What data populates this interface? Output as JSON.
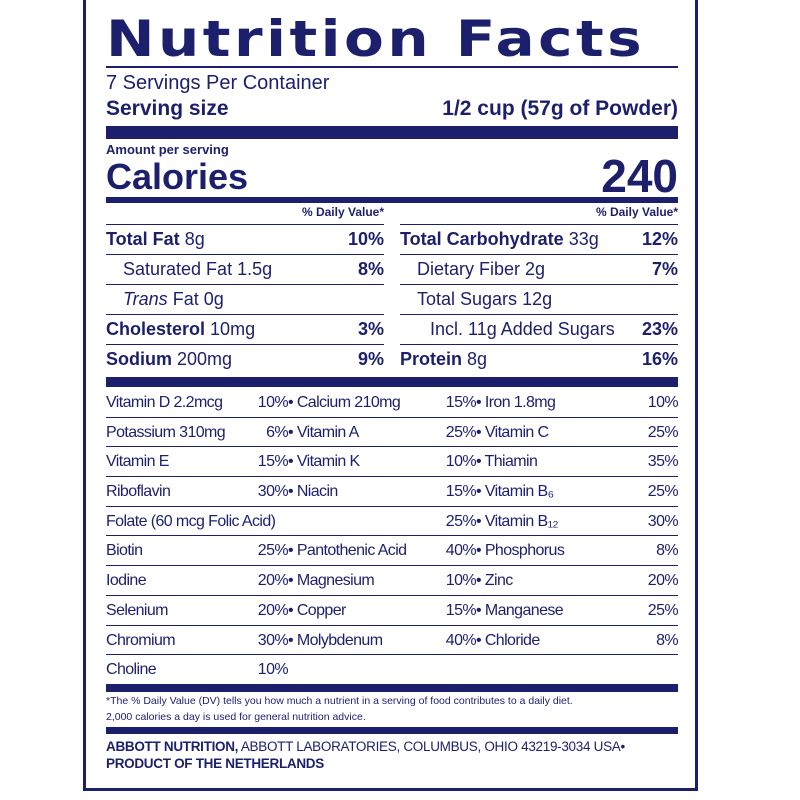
{
  "title": "Nutrition Facts",
  "servings_per_container": "7 Servings Per Container",
  "serving_size_label": "Serving size",
  "serving_size_value": "1/2 cup (57g of Powder)",
  "amount_per_serving": "Amount per serving",
  "calories_label": "Calories",
  "calories_value": "240",
  "dv_header": "% Daily Value*",
  "left_rows": [
    {
      "name": "Total Fat",
      "amount": "8g",
      "dv": "10%",
      "bold": true
    },
    {
      "name": "Saturated Fat",
      "amount": "1.5g",
      "dv": "8%",
      "indent": true
    },
    {
      "name": "Trans",
      "amount": "Fat 0g",
      "dv": "",
      "indent": true,
      "italic": true
    },
    {
      "name": "Cholesterol",
      "amount": "10mg",
      "dv": "3%",
      "bold": true
    },
    {
      "name": "Sodium",
      "amount": "200mg",
      "dv": "9%",
      "bold": true
    }
  ],
  "right_rows": [
    {
      "name": "Total Carbohydrate",
      "amount": "33g",
      "dv": "12%",
      "bold": true
    },
    {
      "name": "Dietary Fiber",
      "amount": "2g",
      "dv": "7%",
      "indent": true
    },
    {
      "name": "Total Sugars",
      "amount": "12g",
      "dv": "",
      "indent": true
    },
    {
      "name": "Incl. 11g Added Sugars",
      "amount": "",
      "dv": "23%",
      "indent2": true
    },
    {
      "name": "Protein",
      "amount": "8g",
      "dv": "16%",
      "bold": true
    }
  ],
  "micronutrients": [
    [
      "Vitamin D 2.2mcg",
      "10%",
      "• Calcium 210mg",
      "15%",
      "• Iron 1.8mg",
      "10%"
    ],
    [
      "Potassium 310mg",
      "6%",
      "• Vitamin A",
      "25%",
      "• Vitamin C",
      "25%"
    ],
    [
      "Vitamin E",
      "15%",
      "• Vitamin K",
      "10%",
      "• Thiamin",
      "35%"
    ],
    [
      "Riboflavin",
      "30%",
      "• Niacin",
      "15%",
      "• Vitamin B₆",
      "25%"
    ],
    [
      "Folate (60 mcg Folic Acid)",
      "",
      "",
      "25%",
      "• Vitamin B₁₂",
      "30%"
    ],
    [
      "Biotin",
      "25%",
      "• Pantothenic Acid",
      "40%",
      "• Phosphorus",
      "8%"
    ],
    [
      "Iodine",
      "20%",
      "• Magnesium",
      "10%",
      "• Zinc",
      "20%"
    ],
    [
      "Selenium",
      "20%",
      "• Copper",
      "15%",
      "• Manganese",
      "25%"
    ],
    [
      "Chromium",
      "30%",
      "• Molybdenum",
      "40%",
      "• Chloride",
      "8%"
    ],
    [
      "Choline",
      "10%",
      "",
      "",
      "",
      ""
    ]
  ],
  "footnote_1": "*The % Daily Value (DV) tells you how much a nutrient in a serving of food contributes to a daily diet.",
  "footnote_2": "2,000 calories a day is used for general nutrition advice.",
  "manufacturer_bold": "ABBOTT NUTRITION,",
  "manufacturer_rest": " ABBOTT LABORATORIES, COLUMBUS, OHIO 43219-3034 USA•",
  "origin": "PRODUCT OF THE NETHERLANDS",
  "colors": {
    "ink": "#1c1f6b",
    "background": "#ffffff"
  }
}
